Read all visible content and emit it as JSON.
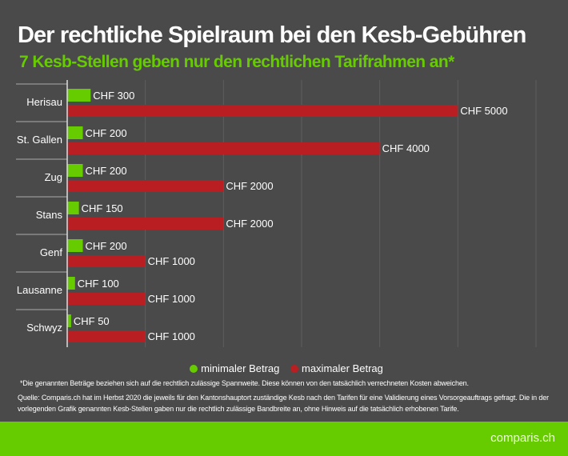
{
  "title": "Der rechtliche Spielraum bei den Kesb-Gebühren",
  "subtitle": "7 Kesb-Stellen geben nur den rechtlichen Tarifrahmen an*",
  "colors": {
    "background": "#4a4a4a",
    "min": "#66cc00",
    "max": "#b81e22",
    "grid": "#5e5e5e"
  },
  "chart_data": {
    "type": "bar",
    "orientation": "horizontal",
    "categories": [
      "Herisau",
      "St. Gallen",
      "Zug",
      "Stans",
      "Genf",
      "Lausanne",
      "Schwyz"
    ],
    "series": [
      {
        "name": "minimaler Betrag",
        "color": "#66cc00",
        "values": [
          300,
          200,
          200,
          150,
          200,
          100,
          50
        ],
        "labels": [
          "CHF 300",
          "CHF 200",
          "CHF 200",
          "CHF 150",
          "CHF 200",
          "CHF 100",
          "CHF 50"
        ]
      },
      {
        "name": "maximaler Betrag",
        "color": "#b81e22",
        "values": [
          5000,
          4000,
          2000,
          2000,
          1000,
          1000,
          1000
        ],
        "labels": [
          "CHF 5000",
          "CHF 4000",
          "CHF 2000",
          "CHF 2000",
          "CHF 1000",
          "CHF 1000",
          "CHF 1000"
        ]
      }
    ],
    "xlim": [
      0,
      6000
    ],
    "grid": true,
    "legend": "bottom-center"
  },
  "legend": {
    "min": "minimaler Betrag",
    "max": "maximaler Betrag"
  },
  "note": "*Die genannten Beträge beziehen sich auf die rechtlich zulässige Spannweite. Diese können von den tatsächlich verrechneten Kosten abweichen.",
  "source": "Quelle: Comparis.ch hat im Herbst 2020 die jeweils für den Kantonshauptort zuständige Kesb nach den Tarifen für eine Validierung eines Vorsorgeauftrags gefragt. Die in der vorlegenden Grafik genannten Kesb-Stellen gaben nur die rechtlich zulässige Bandbreite an, ohne Hinweis auf die tatsächlich erhobenen Tarife.",
  "logo": "comparis.ch"
}
